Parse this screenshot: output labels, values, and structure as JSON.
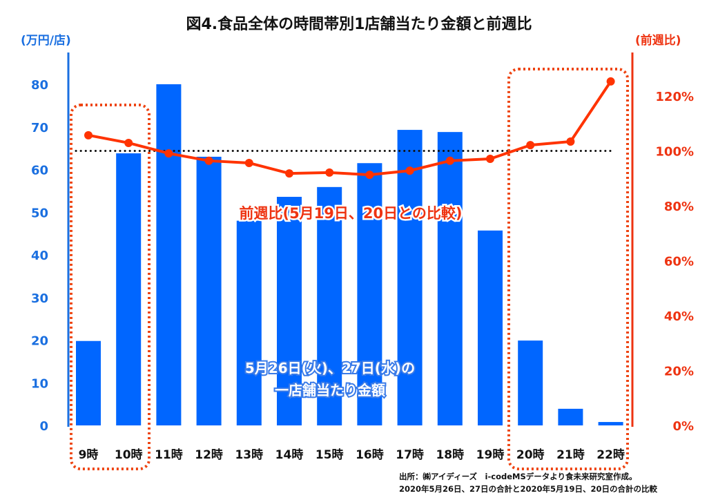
{
  "chart_data": {
    "type": "bar",
    "title": "図4.食品全体の時間帯別1店舗当たり金額と前週比",
    "categories": [
      "9時",
      "10時",
      "11時",
      "12時",
      "13時",
      "14時",
      "15時",
      "16時",
      "17時",
      "18時",
      "19時",
      "20時",
      "21時",
      "22時"
    ],
    "series": [
      {
        "name": "5月26日(火)、27日(水)の一店舗当たり金額",
        "type": "bar",
        "axis": "left",
        "values": [
          19.8,
          63.8,
          80.0,
          63.0,
          48.0,
          53.6,
          55.9,
          61.5,
          69.3,
          68.8,
          45.7,
          19.9,
          3.9,
          0.8
        ]
      },
      {
        "name": "前週比(5月19日、20日との比較)",
        "type": "line",
        "axis": "right",
        "values": [
          105.7,
          102.9,
          99.1,
          96.4,
          95.6,
          91.8,
          92.1,
          91.3,
          92.8,
          96.4,
          97.1,
          102.1,
          103.4,
          125.3
        ]
      }
    ],
    "left_axis": {
      "label": "(万円/店)",
      "ylim": [
        0,
        80
      ],
      "ticks": [
        "0",
        "10",
        "20",
        "30",
        "40",
        "50",
        "60",
        "70",
        "80"
      ]
    },
    "right_axis": {
      "label": "(前週比)",
      "ylim": [
        0,
        120
      ],
      "ticks": [
        "0%",
        "20%",
        "40%",
        "60%",
        "80%",
        "100%",
        "120%"
      ]
    },
    "reference_line": 100,
    "annotations": {
      "line_label": "前週比(5月19日、20日との比較)",
      "bar_label_1": "5月26日(火)、27日(水)の",
      "bar_label_2": "一店舗当たり金額"
    },
    "highlighted_categories": [
      "9時",
      "10時",
      "20時",
      "21時",
      "22時"
    ],
    "source_1": "出所：㈱アイディーズ　i-codeMSデータより食未来研究室作成。",
    "source_2": "2020年5月26日、27日の合計と2020年5月19日、20日の合計の比較",
    "colors": {
      "bar": "#0066ff",
      "line": "#ff3300",
      "left_axis": "#1a6fe0",
      "right_axis": "#ee3311",
      "highlight": "#ee4411"
    }
  }
}
